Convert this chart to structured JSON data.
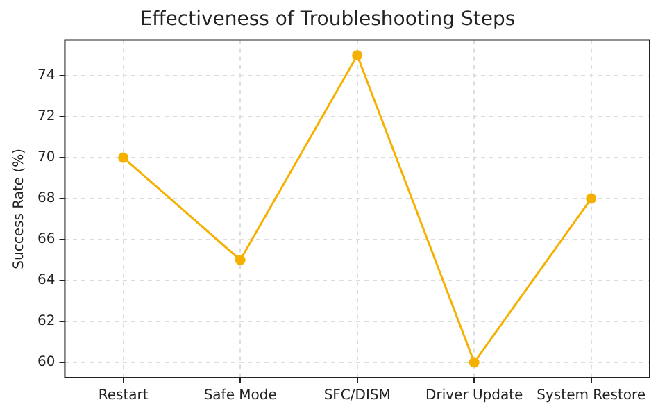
{
  "chart_data": {
    "type": "line",
    "title": "Effectiveness of Troubleshooting Steps",
    "ylabel": "Success Rate (%)",
    "categories": [
      "Restart",
      "Safe Mode",
      "SFC/DISM",
      "Driver Update",
      "System Restore"
    ],
    "series": [
      {
        "color": "#f5b000",
        "values": [
          70,
          65,
          75,
          60,
          68
        ]
      }
    ],
    "ylim": [
      59.25,
      75.75
    ],
    "yticks": [
      60,
      62,
      64,
      66,
      68,
      70,
      72,
      74
    ],
    "grid": true,
    "marker": "circle",
    "line_style": "solid",
    "legend": false
  }
}
